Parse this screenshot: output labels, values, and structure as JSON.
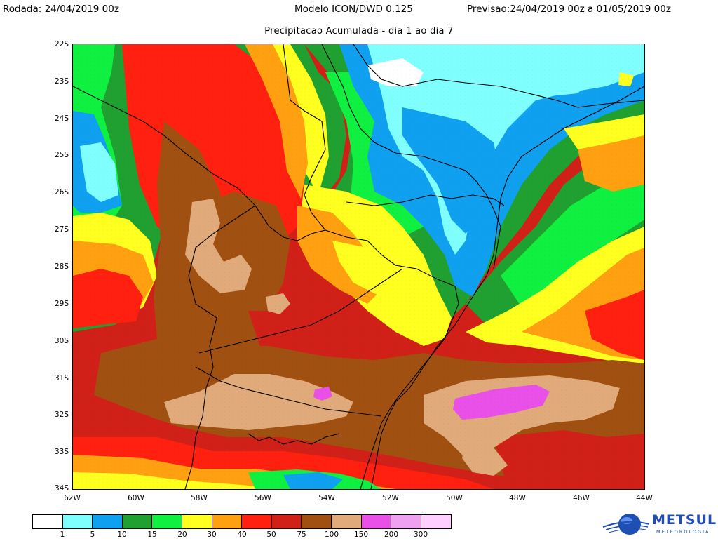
{
  "header": {
    "run_label": "Rodada:",
    "run_value": "24/04/2019 00z",
    "model": "Modelo ICON/DWD 0.125",
    "forecast_label": "Previsao:",
    "forecast_value": "24/04/2019 00z a 01/05/2019 00z",
    "subtitle": "Precipitacao Acumulada - dia 1 ao dia 7"
  },
  "axes": {
    "lat_ticks": [
      "22S",
      "23S",
      "24S",
      "25S",
      "26S",
      "27S",
      "28S",
      "29S",
      "30S",
      "31S",
      "32S",
      "33S",
      "34S"
    ],
    "lon_ticks": [
      "62W",
      "60W",
      "58W",
      "56W",
      "54W",
      "52W",
      "50W",
      "48W",
      "46W",
      "44W"
    ]
  },
  "legend": {
    "labels": [
      "1",
      "5",
      "10",
      "15",
      "20",
      "30",
      "40",
      "50",
      "75",
      "100",
      "150",
      "200",
      "300"
    ],
    "colors": [
      "#ffffff",
      "#80ffff",
      "#10a0f0",
      "#20a030",
      "#10f040",
      "#ffff20",
      "#ffa010",
      "#ff2010",
      "#d02018",
      "#a05010",
      "#e0aa7a",
      "#e850e8",
      "#f0a0f0",
      "#ffd0ff"
    ]
  },
  "palette": {
    "very_light": "#80ffff",
    "blue": "#10a0f0",
    "dark_green": "#20a030",
    "green": "#10f040",
    "yellow": "#ffff20",
    "orange": "#ffa010",
    "red": "#ff2010",
    "dark_red": "#d02018",
    "brown": "#a05010",
    "tan": "#e0aa7a",
    "magenta": "#e850e8"
  },
  "logo": {
    "name": "METSUL",
    "tagline": "METEOROLOGIA"
  }
}
